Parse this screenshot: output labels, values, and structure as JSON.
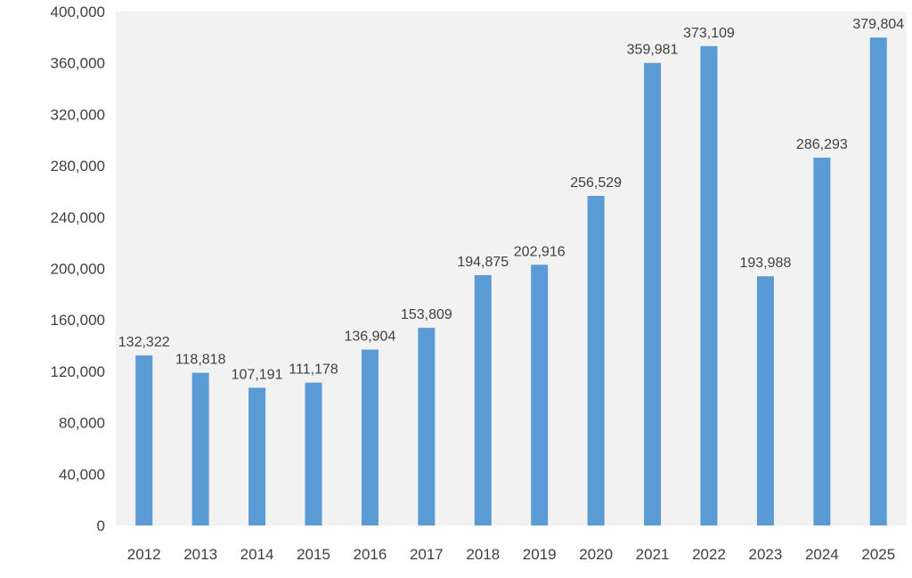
{
  "chart_data": {
    "type": "bar",
    "title": "",
    "xlabel": "",
    "ylabel": "",
    "categories": [
      "2012",
      "2013",
      "2014",
      "2015",
      "2016",
      "2017",
      "2018",
      "2019",
      "2020",
      "2021",
      "2022",
      "2023",
      "2024",
      "2025"
    ],
    "values": [
      132322,
      118818,
      107191,
      111178,
      136904,
      153809,
      194875,
      202916,
      256529,
      359981,
      373109,
      193988,
      286293,
      379804
    ],
    "value_labels": [
      "132,322",
      "118,818",
      "107,191",
      "111,178",
      "136,904",
      "153,809",
      "194,875",
      "202,916",
      "256,529",
      "359,981",
      "373,109",
      "193,988",
      "286,293",
      "379,804"
    ],
    "ylim": [
      0,
      400000
    ],
    "yticks": [
      0,
      40000,
      80000,
      120000,
      160000,
      200000,
      240000,
      280000,
      320000,
      360000,
      400000
    ],
    "ytick_labels": [
      "0",
      "40,000",
      "80,000",
      "120,000",
      "160,000",
      "200,000",
      "240,000",
      "280,000",
      "320,000",
      "360,000",
      "400,000"
    ],
    "grid": false,
    "legend": "none",
    "colors": {
      "bar": "#5B9BD5",
      "plot_background": "#F2F2F2",
      "text": "#404040"
    }
  }
}
